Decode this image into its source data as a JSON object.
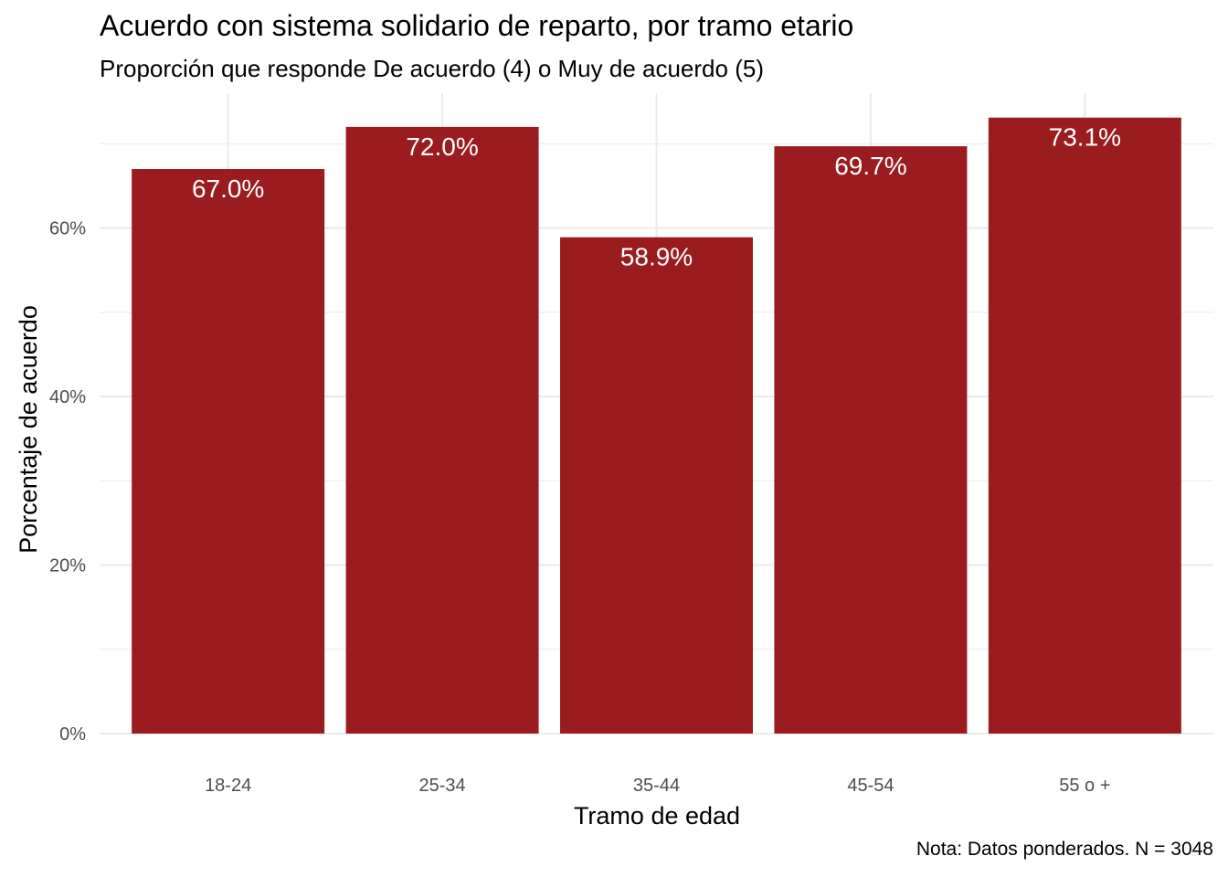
{
  "chart_data": {
    "type": "bar",
    "title": "Acuerdo con sistema solidario de reparto, por tramo etario",
    "subtitle": "Proporción que responde De acuerdo (4) o Muy de acuerdo (5)",
    "caption": "Nota: Datos ponderados. N = 3048",
    "xlabel": "Tramo de edad",
    "ylabel": "Porcentaje de acuerdo",
    "categories": [
      "18-24",
      "25-34",
      "35-44",
      "45-54",
      "55 o +"
    ],
    "values": [
      67.0,
      72.0,
      58.9,
      69.7,
      73.1
    ],
    "data_labels": [
      "67.0%",
      "72.0%",
      "58.9%",
      "69.7%",
      "73.1%"
    ],
    "ylim": [
      0,
      76
    ],
    "y_ticks": [
      0,
      20,
      40,
      60
    ],
    "y_tick_labels": [
      "0%",
      "20%",
      "40%",
      "60%"
    ],
    "grid": true,
    "legend": "none",
    "bar_color": "#9B1C1F",
    "grid_color": "#EBEBEB"
  }
}
